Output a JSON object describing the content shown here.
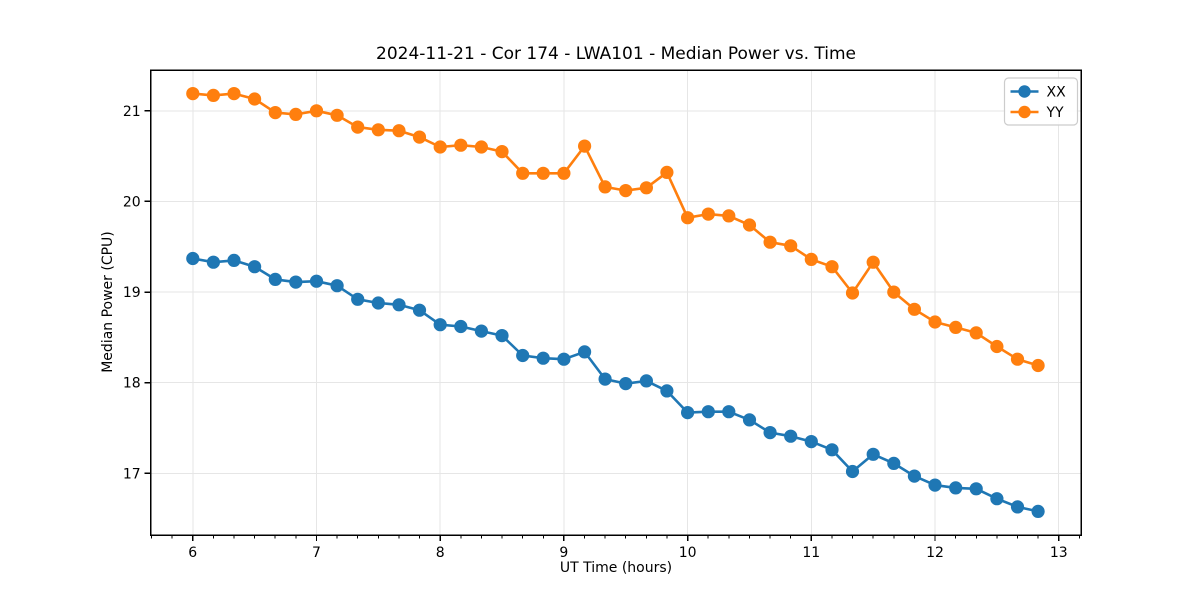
{
  "chart_data": {
    "type": "line",
    "title": "2024-11-21 - Cor 174 - LWA101 - Median Power vs. Time",
    "xlabel": "UT Time (hours)",
    "ylabel": "Median Power (CPU)",
    "x": [
      6.0,
      6.167,
      6.333,
      6.5,
      6.667,
      6.833,
      7.0,
      7.167,
      7.333,
      7.5,
      7.667,
      7.833,
      8.0,
      8.167,
      8.333,
      8.5,
      8.667,
      8.833,
      9.0,
      9.167,
      9.333,
      9.5,
      9.667,
      9.833,
      10.0,
      10.167,
      10.333,
      10.5,
      10.667,
      10.833,
      11.0,
      11.167,
      11.333,
      11.5,
      11.667,
      11.833,
      12.0,
      12.167,
      12.333,
      12.5,
      12.667,
      12.833
    ],
    "series": [
      {
        "name": "XX",
        "color": "#1f77b4",
        "values": [
          19.37,
          19.33,
          19.35,
          19.28,
          19.14,
          19.11,
          19.12,
          19.07,
          18.92,
          18.88,
          18.86,
          18.8,
          18.64,
          18.62,
          18.57,
          18.52,
          18.3,
          18.27,
          18.26,
          18.34,
          18.04,
          17.99,
          18.02,
          17.91,
          17.67,
          17.68,
          17.68,
          17.59,
          17.45,
          17.41,
          17.35,
          17.26,
          17.02,
          17.21,
          17.11,
          16.97,
          16.87,
          16.84,
          16.83,
          16.72,
          16.63,
          16.58
        ]
      },
      {
        "name": "YY",
        "color": "#ff7f0e",
        "values": [
          21.19,
          21.17,
          21.19,
          21.13,
          20.98,
          20.96,
          21.0,
          20.95,
          20.82,
          20.79,
          20.78,
          20.71,
          20.6,
          20.62,
          20.6,
          20.55,
          20.31,
          20.31,
          20.31,
          20.61,
          20.16,
          20.12,
          20.15,
          20.32,
          19.82,
          19.86,
          19.84,
          19.74,
          19.55,
          19.51,
          19.36,
          19.28,
          18.99,
          19.33,
          19.0,
          18.81,
          18.67,
          18.61,
          18.55,
          18.4,
          18.26,
          18.19
        ]
      }
    ],
    "xlim": [
      5.66,
      13.18
    ],
    "ylim": [
      16.32,
      21.45
    ],
    "xticks": [
      6,
      7,
      8,
      9,
      10,
      11,
      12,
      13
    ],
    "yticks": [
      17,
      18,
      19,
      20,
      21
    ],
    "x_minor_tick_interval": 0.1667,
    "grid": true,
    "legend": {
      "position": "upper right",
      "entries": [
        "XX",
        "YY"
      ]
    },
    "marker": "o"
  }
}
